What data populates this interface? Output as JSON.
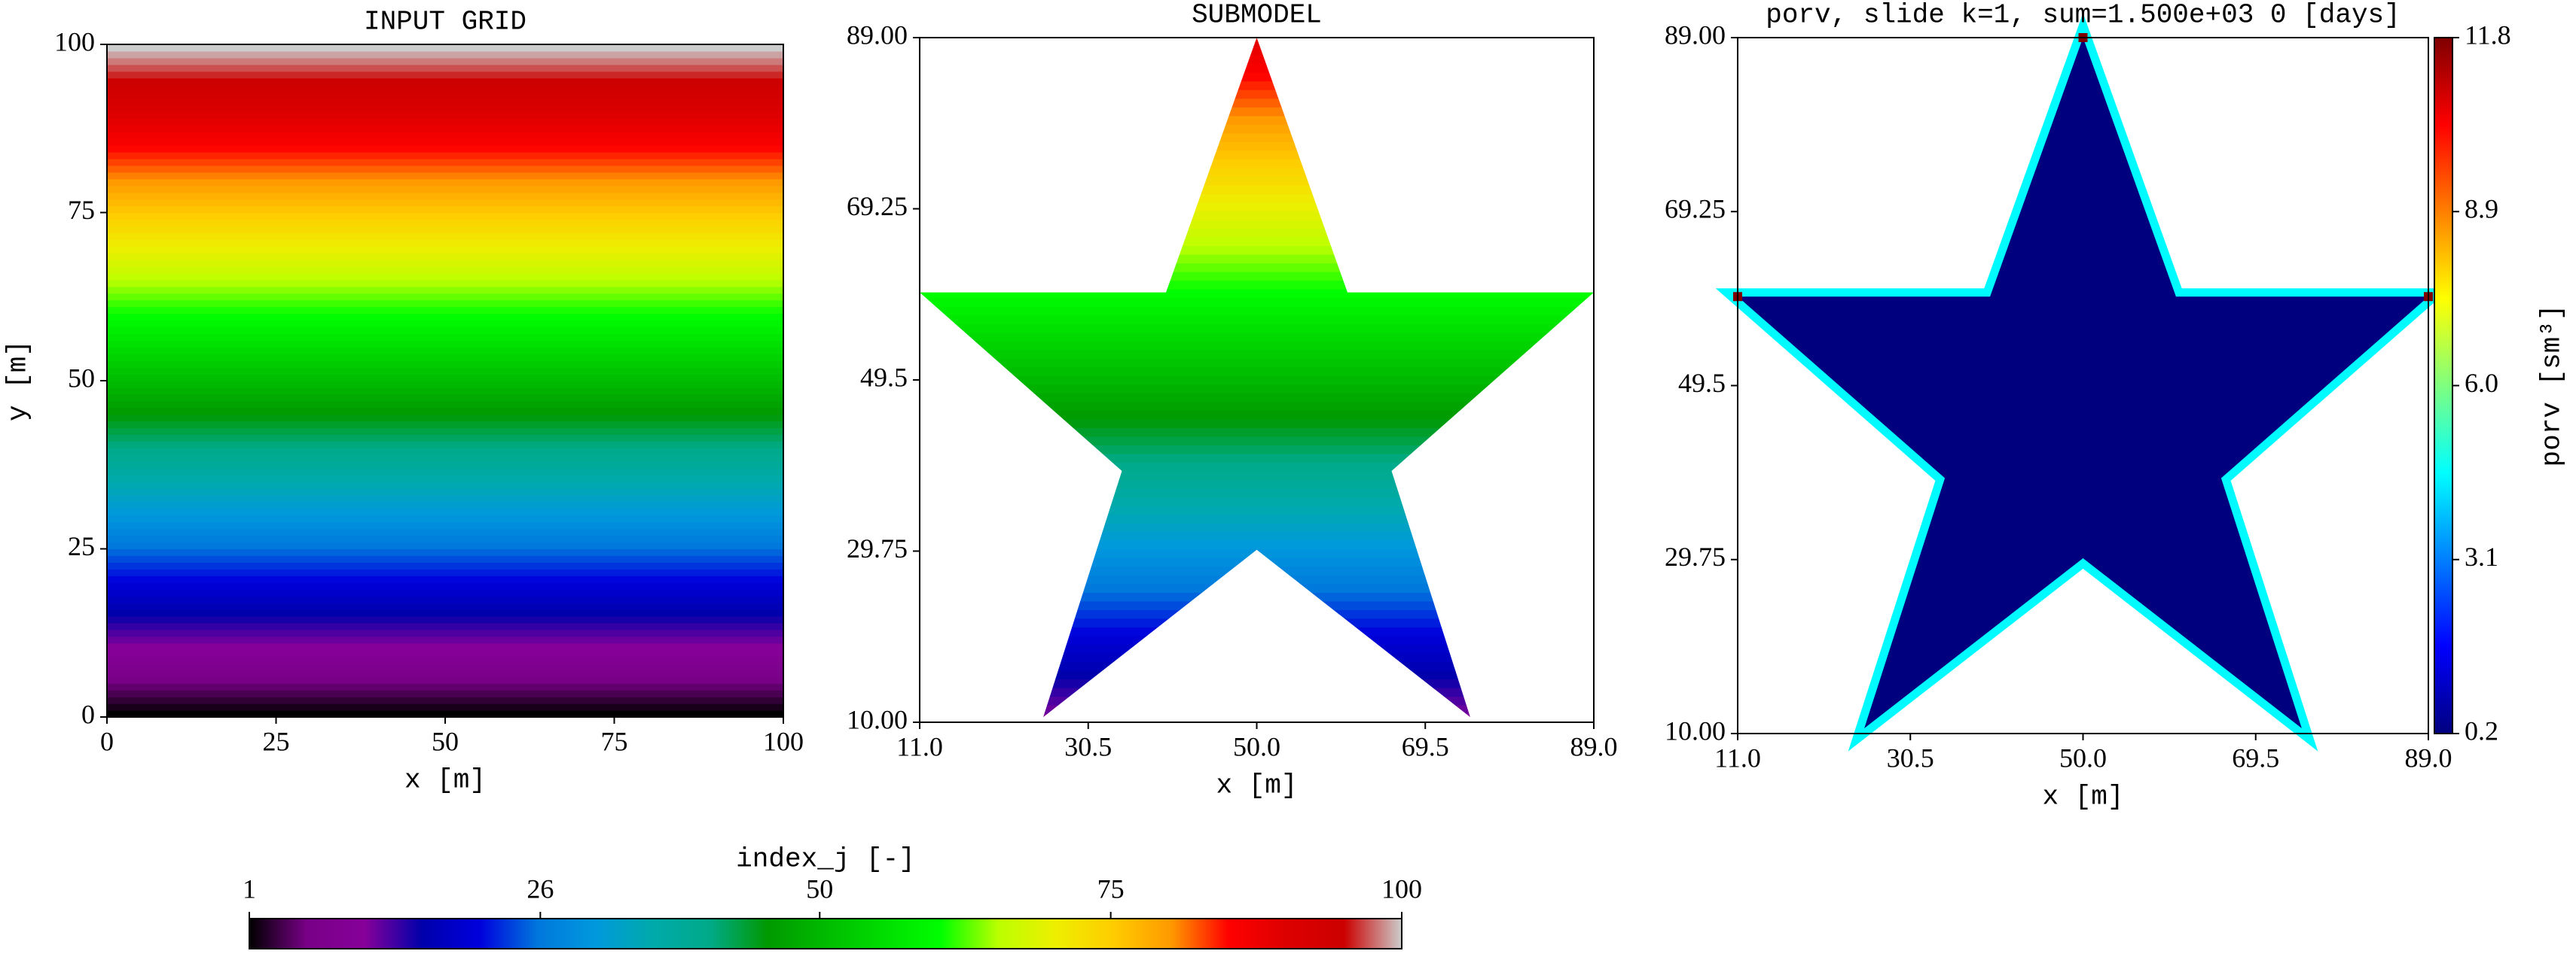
{
  "chart_data": [
    {
      "type": "heatmap",
      "title": "INPUT GRID",
      "xlabel": "x [m]",
      "ylabel": "y [m]",
      "xlim": [
        0,
        100
      ],
      "ylim": [
        0,
        100
      ],
      "xticks": [
        0,
        25,
        50,
        75,
        100
      ],
      "yticks": [
        0,
        25,
        50,
        75,
        100
      ],
      "values": [
        1,
        2,
        3,
        4,
        5,
        6,
        7,
        8,
        9,
        10,
        11,
        12,
        13,
        14,
        15,
        16,
        17,
        18,
        19,
        20,
        21,
        22,
        23,
        24,
        25,
        26,
        27,
        28,
        29,
        30,
        31,
        32,
        33,
        34,
        35,
        36,
        37,
        38,
        39,
        40,
        41,
        42,
        43,
        44,
        45,
        46,
        47,
        48,
        49,
        50,
        51,
        52,
        53,
        54,
        55,
        56,
        57,
        58,
        59,
        60,
        61,
        62,
        63,
        64,
        65,
        66,
        67,
        68,
        69,
        70,
        71,
        72,
        73,
        74,
        75,
        76,
        77,
        78,
        79,
        80,
        81,
        82,
        83,
        84,
        85,
        86,
        87,
        88,
        89,
        90,
        91,
        92,
        93,
        94,
        95,
        96,
        97,
        98,
        99,
        100
      ]
    },
    {
      "type": "heatmap",
      "title": "SUBMODEL",
      "xlabel": "x [m]",
      "xlim": [
        11,
        89
      ],
      "ylim": [
        10,
        89
      ],
      "xticks": [
        {
          "value": 11,
          "label": "11.0"
        },
        30.5,
        {
          "value": 50,
          "label": "50.0"
        },
        69.5,
        {
          "value": 89,
          "label": "89.0"
        }
      ],
      "yticks": [
        {
          "value": 10,
          "label": "10.00"
        },
        29.75,
        49.5,
        69.25,
        {
          "value": 89,
          "label": "89.00"
        }
      ],
      "outline": {
        "x": [
          50,
          60.5,
          89,
          65.6,
          74.7,
          50,
          25.3,
          34.4,
          11,
          39.5
        ],
        "y": [
          89,
          59.6,
          59.6,
          39,
          10.6,
          29.9,
          10.6,
          39,
          59.6,
          59.6
        ]
      },
      "values": [
        11,
        12,
        13,
        14,
        15,
        16,
        17,
        18,
        19,
        20,
        21,
        22,
        23,
        24,
        25,
        26,
        27,
        28,
        29,
        30,
        31,
        32,
        33,
        34,
        35,
        36,
        37,
        38,
        39,
        40,
        41,
        42,
        43,
        44,
        45,
        46,
        47,
        48,
        49,
        50,
        51,
        52,
        53,
        54,
        55,
        56,
        57,
        58,
        59,
        60,
        61,
        62,
        63,
        64,
        65,
        66,
        67,
        68,
        69,
        70,
        71,
        72,
        73,
        74,
        75,
        76,
        77,
        78,
        79,
        80,
        81,
        82,
        83,
        84,
        85,
        86,
        87,
        88,
        89
      ]
    },
    {
      "type": "outline-map",
      "title": "porv, slide k=1, sum=1.500e+03 0 [days]",
      "xlabel": "x [m]",
      "xlim": [
        11,
        89
      ],
      "ylim": [
        10,
        89
      ],
      "xticks": [
        {
          "value": 11,
          "label": "11.0"
        },
        30.5,
        {
          "value": 50,
          "label": "50.0"
        },
        69.5,
        {
          "value": 89,
          "label": "89.0"
        }
      ],
      "yticks": [
        {
          "value": 10,
          "label": "10.00"
        },
        29.75,
        49.5,
        69.25,
        {
          "value": 89,
          "label": "89.00"
        }
      ],
      "outline": {
        "x": [
          50,
          60.5,
          89,
          65.6,
          74.7,
          50,
          25.3,
          34.4,
          11,
          39.5
        ],
        "y": [
          89,
          59.6,
          59.6,
          39,
          10.6,
          29.9,
          10.6,
          39,
          59.6,
          59.6
        ]
      },
      "interior_value": 0.2,
      "boundary_value": 4.5,
      "tips": {
        "x": [
          11,
          50,
          89
        ],
        "y": [
          59.6,
          89,
          59.6
        ],
        "values": [
          11.8,
          11.8,
          11.8
        ]
      },
      "colorbar": {
        "label": "porv [sm³]",
        "lim": [
          0.2,
          11.8
        ],
        "ticks": [
          0.2,
          3.1,
          {
            "value": 6,
            "label": "6.0"
          },
          8.9,
          11.8
        ],
        "colormap": [
          "#00007f",
          "#0000ff",
          "#007fff",
          "#00ffff",
          "#7fff7f",
          "#ffff00",
          "#ff7f00",
          "#ff0000",
          "#7f0000"
        ]
      }
    }
  ],
  "colorbar": {
    "label": "index_j [-]",
    "lim": [
      1,
      100
    ],
    "ticks": [
      1,
      26,
      50,
      75,
      100
    ],
    "colormap": [
      "#000000",
      "#780087",
      "#870099",
      "#0000ab",
      "#0000dd",
      "#0077dd",
      "#0099dd",
      "#00aaaa",
      "#00aa88",
      "#009900",
      "#00bb00",
      "#00dd00",
      "#00ff00",
      "#bbff00",
      "#eeee00",
      "#ffcc00",
      "#ff9900",
      "#ff0000",
      "#dd0000",
      "#cc0000",
      "#cccccc"
    ]
  }
}
